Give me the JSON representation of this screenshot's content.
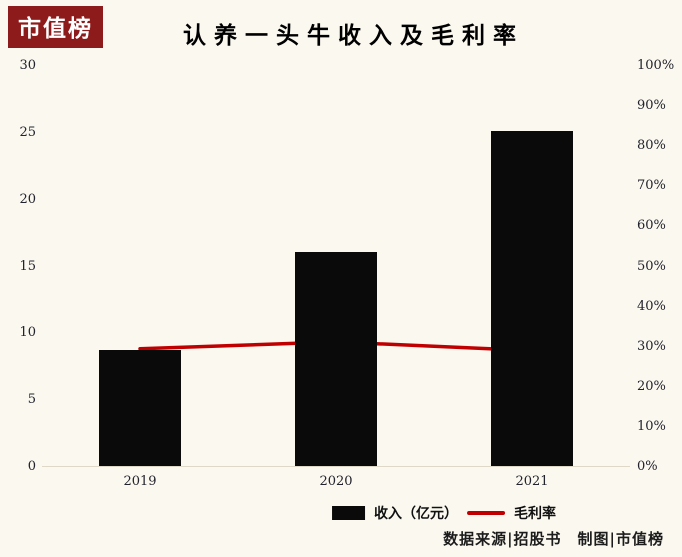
{
  "page": {
    "background": "#FAF8EF",
    "logo": "市值榜",
    "logo_bg": "#8E1B1B",
    "title": "认养一头牛收入及毛利率",
    "footer": "数据来源|招股书　制图|市值榜"
  },
  "legend": {
    "bar_label": "收入（亿元）",
    "line_label": "毛利率"
  },
  "chart_data": {
    "type": "bar",
    "subtype": "bar+line combo",
    "title": "认养一头牛收入及毛利率",
    "categories": [
      "2019",
      "2020",
      "2021"
    ],
    "series": [
      {
        "name": "收入（亿元）",
        "type": "bar",
        "axis": "left",
        "color": "#0A0A0A",
        "values": [
          8.65,
          16.0,
          25.1
        ]
      },
      {
        "name": "毛利率",
        "type": "line",
        "axis": "right",
        "color": "#C00000",
        "values": [
          29.5,
          31.2,
          29.0
        ]
      }
    ],
    "left_axis": {
      "min": 0,
      "max": 30,
      "step": 5,
      "ticks": [
        "0",
        "5",
        "10",
        "15",
        "20",
        "25",
        "30"
      ]
    },
    "right_axis": {
      "min": 0,
      "max": 100,
      "step": 10,
      "ticks": [
        "0%",
        "10%",
        "20%",
        "30%",
        "40%",
        "50%",
        "60%",
        "70%",
        "80%",
        "90%",
        "100%"
      ]
    },
    "xlabel": "",
    "ylabel_left": "亿元",
    "ylabel_right": "%",
    "grid": false,
    "legend_position": "bottom"
  }
}
